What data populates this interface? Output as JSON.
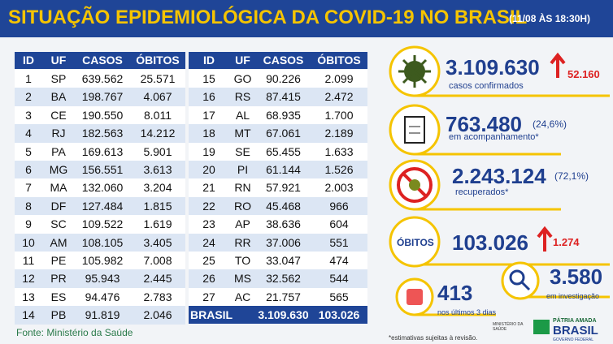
{
  "header": {
    "title": "SITUAÇÃO EPIDEMIOLÓGICA DA COVID-19 NO BRASIL",
    "date": "(11/08 ÀS 18:30H)"
  },
  "table": {
    "columns": [
      "ID",
      "UF",
      "CASOS",
      "ÓBITOS"
    ],
    "left_rows": [
      [
        "1",
        "SP",
        "639.562",
        "25.571"
      ],
      [
        "2",
        "BA",
        "198.767",
        "4.067"
      ],
      [
        "3",
        "CE",
        "190.550",
        "8.011"
      ],
      [
        "4",
        "RJ",
        "182.563",
        "14.212"
      ],
      [
        "5",
        "PA",
        "169.613",
        "5.901"
      ],
      [
        "6",
        "MG",
        "156.551",
        "3.613"
      ],
      [
        "7",
        "MA",
        "132.060",
        "3.204"
      ],
      [
        "8",
        "DF",
        "127.484",
        "1.815"
      ],
      [
        "9",
        "SC",
        "109.522",
        "1.619"
      ],
      [
        "10",
        "AM",
        "108.105",
        "3.405"
      ],
      [
        "11",
        "PE",
        "105.982",
        "7.008"
      ],
      [
        "12",
        "PR",
        "95.943",
        "2.445"
      ],
      [
        "13",
        "ES",
        "94.476",
        "2.783"
      ],
      [
        "14",
        "PB",
        "91.819",
        "2.046"
      ]
    ],
    "right_rows": [
      [
        "15",
        "GO",
        "90.226",
        "2.099"
      ],
      [
        "16",
        "RS",
        "87.415",
        "2.472"
      ],
      [
        "17",
        "AL",
        "68.935",
        "1.700"
      ],
      [
        "18",
        "MT",
        "67.061",
        "2.189"
      ],
      [
        "19",
        "SE",
        "65.455",
        "1.633"
      ],
      [
        "20",
        "PI",
        "61.144",
        "1.526"
      ],
      [
        "21",
        "RN",
        "57.921",
        "2.003"
      ],
      [
        "22",
        "RO",
        "45.468",
        "966"
      ],
      [
        "23",
        "AP",
        "38.636",
        "604"
      ],
      [
        "24",
        "RR",
        "37.006",
        "551"
      ],
      [
        "25",
        "TO",
        "33.047",
        "474"
      ],
      [
        "26",
        "MS",
        "32.562",
        "544"
      ],
      [
        "27",
        "AC",
        "21.757",
        "565"
      ]
    ],
    "total": [
      "BRASIL",
      "3.109.630",
      "103.026"
    ]
  },
  "source": "Fonte: Ministério da Saúde",
  "stats": {
    "confirmed": {
      "value": "3.109.630",
      "label": "casos confirmados",
      "delta": "52.160"
    },
    "monitoring": {
      "value": "763.480",
      "percent": "(24,6%)",
      "label": "em acompanhamento*"
    },
    "recovered": {
      "value": "2.243.124",
      "percent": "(72,1%)",
      "label": "recuperados*"
    },
    "deaths": {
      "title": "ÓBITOS",
      "value": "103.026",
      "delta": "1.274"
    },
    "last_days": {
      "value": "413",
      "label": "nos últimos 3 dias"
    },
    "investigation": {
      "value": "3.580",
      "label": "em investigação"
    }
  },
  "note": "*estimativas sujeitas à revisão.",
  "logos": {
    "ministry": "MINISTÉRIO DA SAÚDE",
    "motto": "PÁTRIA AMADA",
    "country": "BRASIL",
    "government": "GOVERNO FEDERAL"
  }
}
